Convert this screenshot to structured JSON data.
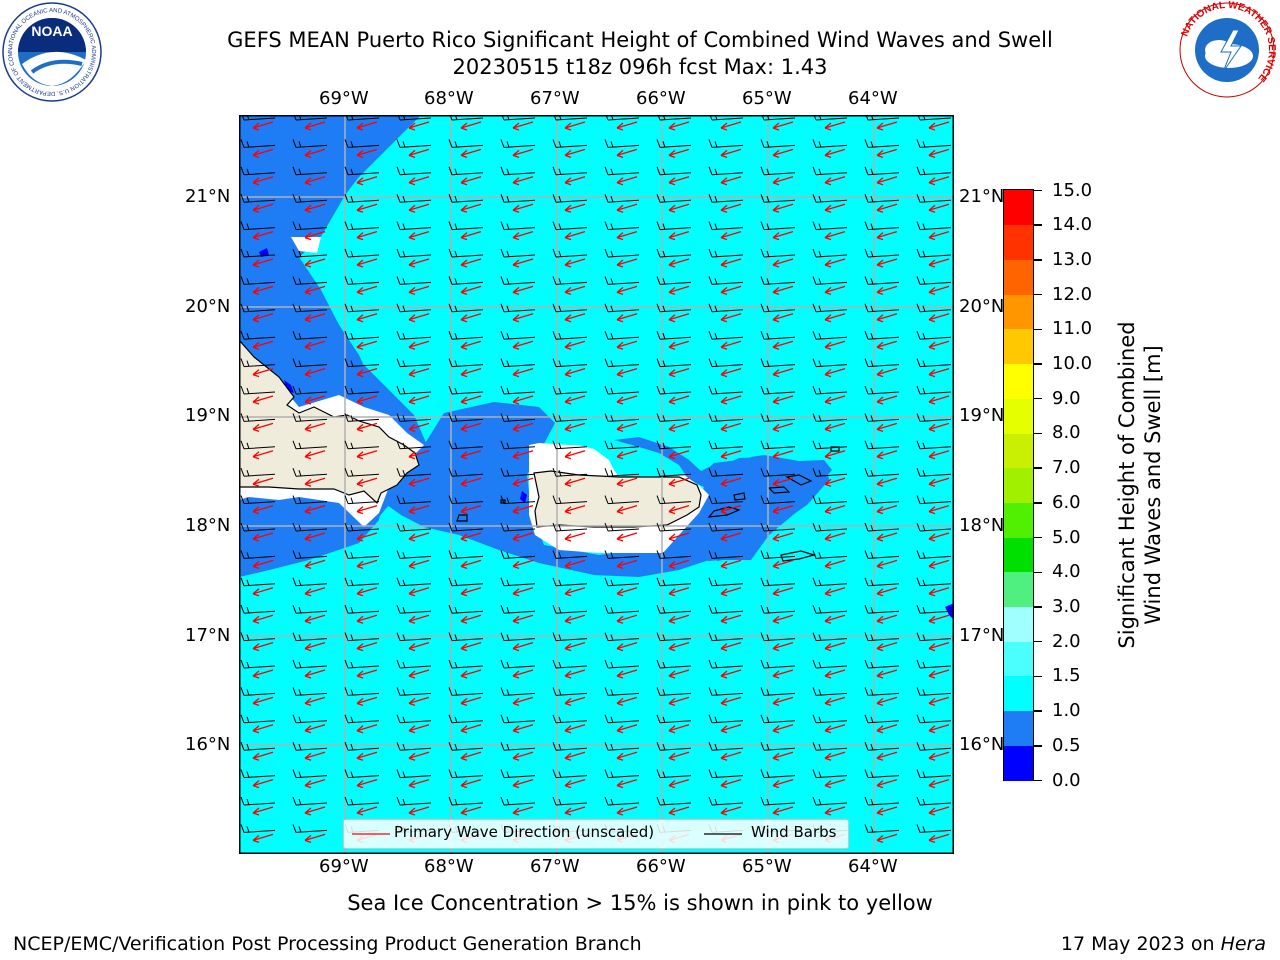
{
  "header": {
    "title_line1": "GEFS MEAN Puerto Rico Significant Height of Combined Wind Waves and Swell",
    "title_line2": "20230515 t18z 096h fcst   Max: 1.43"
  },
  "logos": {
    "noaa_text": "NOAA",
    "noaa_ring_text": "NATIONAL OCEANIC AND ATMOSPHERIC ADMINISTRATION U.S. DEPARTMENT OF COMMERCE",
    "nws_ring_text": "NATIONAL WEATHER SERVICE"
  },
  "map": {
    "lon_labels": [
      "69°W",
      "68°W",
      "67°W",
      "66°W",
      "65°W",
      "64°W"
    ],
    "lat_labels": [
      "21°N",
      "20°N",
      "19°N",
      "18°N",
      "17°N",
      "16°N"
    ],
    "colors": {
      "ocean_low": "#00ffff",
      "ocean_mid": "#1e7cf5",
      "ocean_min": "#0000ff",
      "land": "#f0ecdc",
      "wave_arrow": "#ff0000",
      "wind_barb": "#000000"
    }
  },
  "legend": {
    "wave_label": "Primary Wave Direction (unscaled)",
    "barb_label": "Wind Barbs"
  },
  "colorbar": {
    "label_line1": "Significant Height of Combined",
    "label_line2": "Wind Waves and Swell [m]",
    "ticks": [
      "0.0",
      "0.5",
      "1.0",
      "1.5",
      "2.0",
      "3.0",
      "4.0",
      "5.0",
      "6.0",
      "7.0",
      "8.0",
      "9.0",
      "10.0",
      "11.0",
      "12.0",
      "13.0",
      "14.0",
      "15.0"
    ],
    "colors": [
      "#0000ff",
      "#1e7cf5",
      "#00ffff",
      "#4cffff",
      "#a0ffff",
      "#50f080",
      "#00e000",
      "#50f000",
      "#a0f000",
      "#c8f000",
      "#e6ff00",
      "#ffff00",
      "#ffc800",
      "#ff9600",
      "#ff6400",
      "#ff3200",
      "#ff0000"
    ]
  },
  "footer": {
    "sea_ice_note": "Sea Ice Concentration > 15% is shown in pink to yellow",
    "branch": "NCEP/EMC/Verification Post Processing Product Generation Branch",
    "date": "17 May 2023 on ",
    "host": "Hera"
  }
}
